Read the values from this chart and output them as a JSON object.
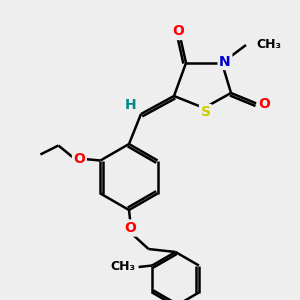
{
  "bg_color": "#eeeeee",
  "bond_color": "#000000",
  "bond_width": 1.8,
  "atom_colors": {
    "O": "#ff0000",
    "N": "#0000cc",
    "S": "#cccc00",
    "H": "#008888",
    "C": "#000000"
  },
  "font_size": 10,
  "fig_size": [
    3.0,
    3.0
  ],
  "dpi": 100
}
